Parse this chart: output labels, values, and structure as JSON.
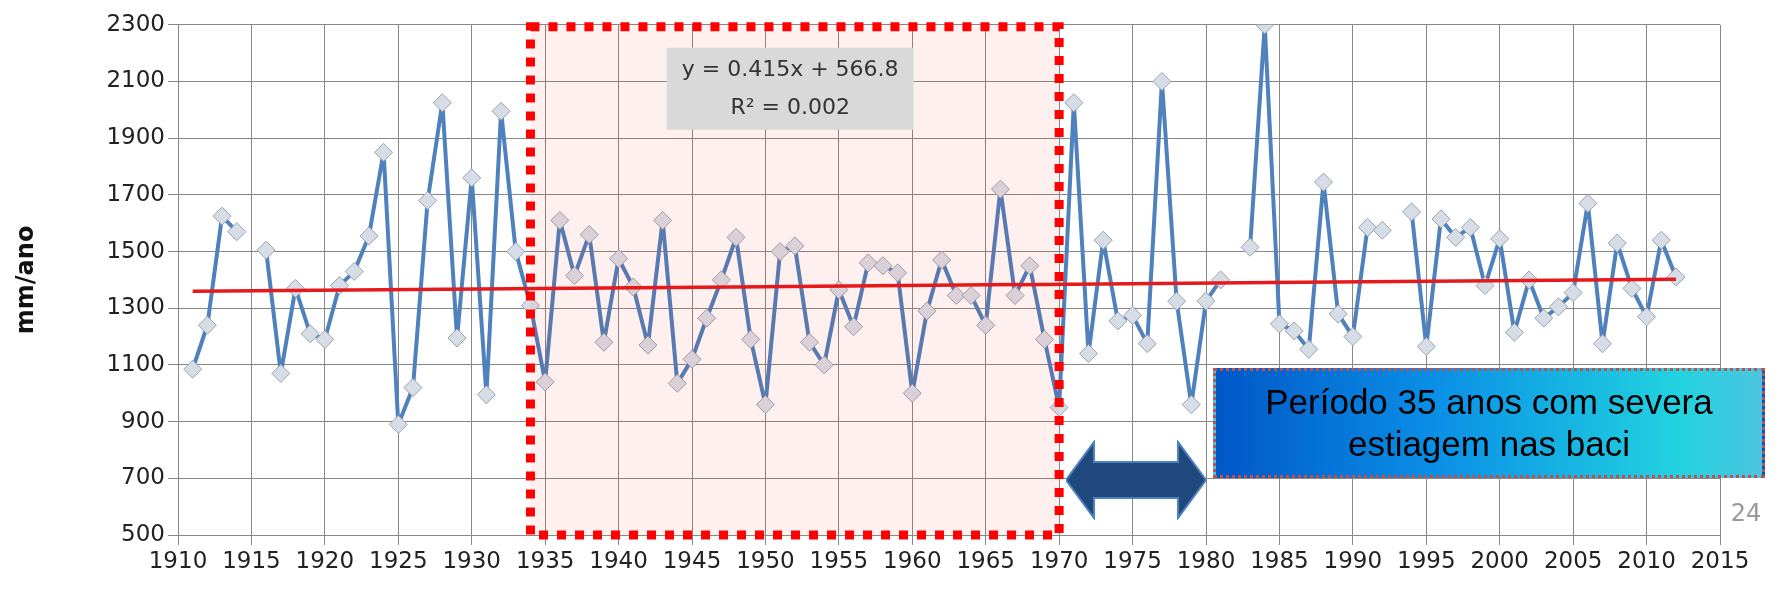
{
  "chart_data": {
    "type": "line",
    "ylabel": "mm/ano",
    "xlim": [
      1910,
      2015
    ],
    "xticks": [
      1910,
      1915,
      1920,
      1925,
      1930,
      1935,
      1940,
      1945,
      1950,
      1955,
      1960,
      1965,
      1970,
      1975,
      1980,
      1985,
      1990,
      1995,
      2000,
      2005,
      2010,
      2015
    ],
    "ylim": [
      500,
      2300
    ],
    "yticks": [
      500,
      700,
      900,
      1100,
      1300,
      1500,
      1700,
      1900,
      2100,
      2300
    ],
    "grid": true,
    "legend": false,
    "marker": "diamond",
    "x": [
      1911,
      1912,
      1913,
      1914,
      1915,
      1916,
      1917,
      1918,
      1919,
      1920,
      1921,
      1922,
      1923,
      1924,
      1925,
      1926,
      1927,
      1928,
      1929,
      1930,
      1931,
      1932,
      1933,
      1934,
      1935,
      1936,
      1937,
      1938,
      1939,
      1940,
      1941,
      1942,
      1943,
      1944,
      1945,
      1946,
      1947,
      1948,
      1949,
      1950,
      1951,
      1952,
      1953,
      1954,
      1955,
      1956,
      1957,
      1958,
      1959,
      1960,
      1961,
      1962,
      1963,
      1964,
      1965,
      1966,
      1967,
      1968,
      1969,
      1970,
      1971,
      1972,
      1973,
      1974,
      1975,
      1976,
      1977,
      1978,
      1979,
      1980,
      1981,
      1982,
      1983,
      1984,
      1985,
      1986,
      1987,
      1988,
      1989,
      1990,
      1991,
      1992,
      1993,
      1994,
      1995,
      1996,
      1997,
      1998,
      1999,
      2000,
      2001,
      2002,
      2003,
      2004,
      2005,
      2006,
      2007,
      2008,
      2009,
      2010,
      2011,
      2012
    ],
    "series": [
      {
        "color": "#4f81bd",
        "values": [
          1085,
          1240,
          1625,
          1570,
          null,
          1505,
          1070,
          1370,
          1210,
          1190,
          1380,
          1430,
          1555,
          1850,
          890,
          1020,
          1680,
          2025,
          1195,
          1760,
          995,
          1995,
          1500,
          1310,
          1040,
          1610,
          1415,
          1560,
          1180,
          1475,
          1375,
          1170,
          1610,
          1035,
          1120,
          1265,
          1400,
          1550,
          1190,
          960,
          1500,
          1520,
          1180,
          1100,
          1365,
          1235,
          1460,
          1450,
          1425,
          1000,
          1290,
          1470,
          1345,
          1345,
          1240,
          1720,
          1345,
          1450,
          1190,
          950,
          2025,
          1140,
          1540,
          1255,
          1275,
          1175,
          2100,
          1325,
          960,
          1325,
          1400,
          null,
          1515,
          2300,
          1245,
          1220,
          1155,
          1745,
          1280,
          1200,
          1585,
          1575,
          null,
          1640,
          1165,
          1615,
          1550,
          1585,
          1380,
          1545,
          1215,
          1400,
          1265,
          1305,
          1355,
          1670,
          1175,
          1530,
          1370,
          1270,
          1540,
          1410
        ]
      },
      {
        "type": "line",
        "color": "#e41a1c",
        "marker": "none",
        "x": [
          1911,
          2012
        ],
        "values": [
          1360,
          1402
        ]
      }
    ],
    "bands": [
      {
        "axis": "x",
        "from": 1934,
        "to": 1970,
        "color": "#ff0000"
      }
    ],
    "annotations": [
      "y = 0.415x + 566.8",
      "R² = 0.002",
      "Período 35 anos com severa estiagem nas baci",
      "24"
    ]
  }
}
